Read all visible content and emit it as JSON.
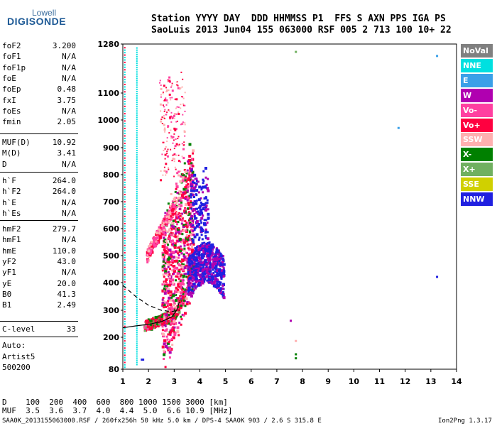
{
  "logo": {
    "line1": "Lowell",
    "line2": "DIGISONDE"
  },
  "header": {
    "row1": "Station YYYY DAY  DDD HHMMSS P1  FFS S AXN PPS IGA PS",
    "row2": "SaoLuis 2013 Jun04 155 063000 RSF 005 2 713 100 10+ 22"
  },
  "params_group1": [
    {
      "name": "foF2",
      "value": "3.200"
    },
    {
      "name": "foF1",
      "value": "N/A"
    },
    {
      "name": "foF1p",
      "value": "N/A"
    },
    {
      "name": "foE",
      "value": "N/A"
    },
    {
      "name": "foEp",
      "value": "0.48"
    },
    {
      "name": "fxI",
      "value": "3.75"
    },
    {
      "name": "foEs",
      "value": "N/A"
    },
    {
      "name": "fmin",
      "value": "2.05"
    }
  ],
  "params_group2": [
    {
      "name": "MUF(D)",
      "value": "10.92"
    },
    {
      "name": "M(D)",
      "value": "3.41"
    },
    {
      "name": "D",
      "value": "N/A"
    }
  ],
  "params_group3": [
    {
      "name": "h`F",
      "value": "264.0"
    },
    {
      "name": "h`F2",
      "value": "264.0"
    },
    {
      "name": "h`E",
      "value": "N/A"
    },
    {
      "name": "h`Es",
      "value": "N/A"
    }
  ],
  "params_group4": [
    {
      "name": "hmF2",
      "value": "279.7"
    },
    {
      "name": "hmF1",
      "value": "N/A"
    },
    {
      "name": "hmE",
      "value": "110.0"
    },
    {
      "name": "yF2",
      "value": "43.0"
    },
    {
      "name": "yF1",
      "value": "N/A"
    },
    {
      "name": "yE",
      "value": "20.0"
    },
    {
      "name": "B0",
      "value": "41.3"
    },
    {
      "name": "B1",
      "value": "2.49"
    }
  ],
  "clevel": {
    "name": "C-level",
    "value": "33"
  },
  "auto": {
    "line1": "Auto:",
    "line2": "Artist5",
    "line3": "500200"
  },
  "legend": [
    {
      "label": "NoVal",
      "color": "#808080"
    },
    {
      "label": "NNE",
      "color": "#00e0e0"
    },
    {
      "label": "E",
      "color": "#3aa0e8"
    },
    {
      "label": "W",
      "color": "#b000b0"
    },
    {
      "label": "Vo-",
      "color": "#ff40a0"
    },
    {
      "label": "Vo+",
      "color": "#ff0040"
    },
    {
      "label": "SSW",
      "color": "#ffb0b0"
    },
    {
      "label": "X-",
      "color": "#008000"
    },
    {
      "label": "X+",
      "color": "#70b060"
    },
    {
      "label": "SSE",
      "color": "#d0d000"
    },
    {
      "label": "NNW",
      "color": "#2020e0"
    }
  ],
  "chart_data": {
    "type": "scatter",
    "x_ticks": [
      "1",
      "2",
      "3",
      "4",
      "5",
      "6",
      "7",
      "8",
      "9",
      "10",
      "11",
      "12",
      "13",
      "14"
    ],
    "y_ticks": [
      "80",
      "200",
      "300",
      "400",
      "500",
      "600",
      "700",
      "800",
      "900",
      "1000",
      "1100",
      "1280"
    ],
    "xlim": [
      1,
      14
    ],
    "ylim": [
      80,
      1280
    ]
  },
  "bottom": {
    "d_row": "D    100  200  400  600  800 1000 1500 3000 [km]",
    "muf_row": "MUF  3.5  3.6  3.7  4.0  4.4  5.0  6.6 10.9 [MHz]",
    "footer_left": "SAA0K_2013155063000.RSF / 260fx256h 50 kHz 5.0 km / DPS-4 SAA0K 903 / 2.6 S 315.8 E",
    "footer_right": "Ion2Png 1.3.17"
  }
}
